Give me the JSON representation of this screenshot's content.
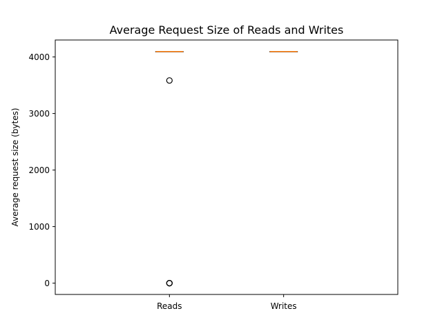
{
  "chart_data": {
    "type": "box",
    "title": "Average Request Size of Reads and Writes",
    "xlabel": "",
    "ylabel": "Average request size (bytes)",
    "categories": [
      "Reads",
      "Writes"
    ],
    "ylim": [
      -200,
      4300
    ],
    "yticks": [
      0,
      1000,
      2000,
      3000,
      4000
    ],
    "grid": false,
    "boxes": [
      {
        "category": "Reads",
        "q1": 4096,
        "median": 4096,
        "q3": 4096,
        "whisker_low": 4096,
        "whisker_high": 4096,
        "outliers": [
          3584,
          0,
          0,
          0
        ]
      },
      {
        "category": "Writes",
        "q1": 4096,
        "median": 4096,
        "q3": 4096,
        "whisker_low": 4096,
        "whisker_high": 4096,
        "outliers": []
      }
    ],
    "colors": {
      "box": "#000000",
      "median": "#ff7f0e",
      "outlier": "#000000"
    }
  }
}
